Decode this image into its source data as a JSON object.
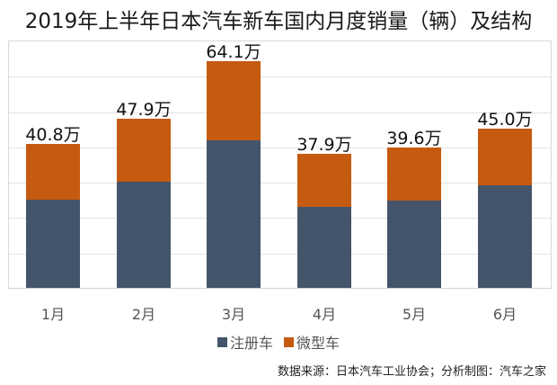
{
  "title": "2019年上半年日本汽车新车国内月度销量（辆）及结构",
  "source": "数据来源：日本汽车工业协会；分析制图：汽车之家",
  "colors": {
    "registered": "#44546a",
    "kei": "#c55a11",
    "gridline": "#e3e3e3"
  },
  "legend": [
    {
      "name": "注册车",
      "color": "#44546a"
    },
    {
      "name": "微型车",
      "color": "#c55a11"
    }
  ],
  "chart_data": {
    "type": "bar",
    "stacked": true,
    "title": "2019年上半年日本汽车新车国内月度销量（辆）及结构",
    "categories": [
      "1月",
      "2月",
      "3月",
      "4月",
      "5月",
      "6月"
    ],
    "series": [
      {
        "name": "注册车",
        "values": [
          24.9,
          30.0,
          41.7,
          22.9,
          24.7,
          29.0
        ]
      },
      {
        "name": "微型车",
        "values": [
          15.9,
          17.9,
          22.4,
          15.0,
          14.9,
          16.0
        ]
      }
    ],
    "totals": [
      40.8,
      47.9,
      64.1,
      37.9,
      39.6,
      45.0
    ],
    "total_labels": [
      "40.8万",
      "47.9万",
      "64.1万",
      "37.9万",
      "39.6万",
      "45.0万"
    ],
    "unit": "万辆",
    "xlabel": "",
    "ylabel": "",
    "ylim": [
      0,
      70
    ],
    "y_gridline_step": 10,
    "grid": true,
    "y_axis_labels_visible": false,
    "legend_position": "bottom",
    "source": "数据来源：日本汽车工业协会；分析制图：汽车之家"
  }
}
